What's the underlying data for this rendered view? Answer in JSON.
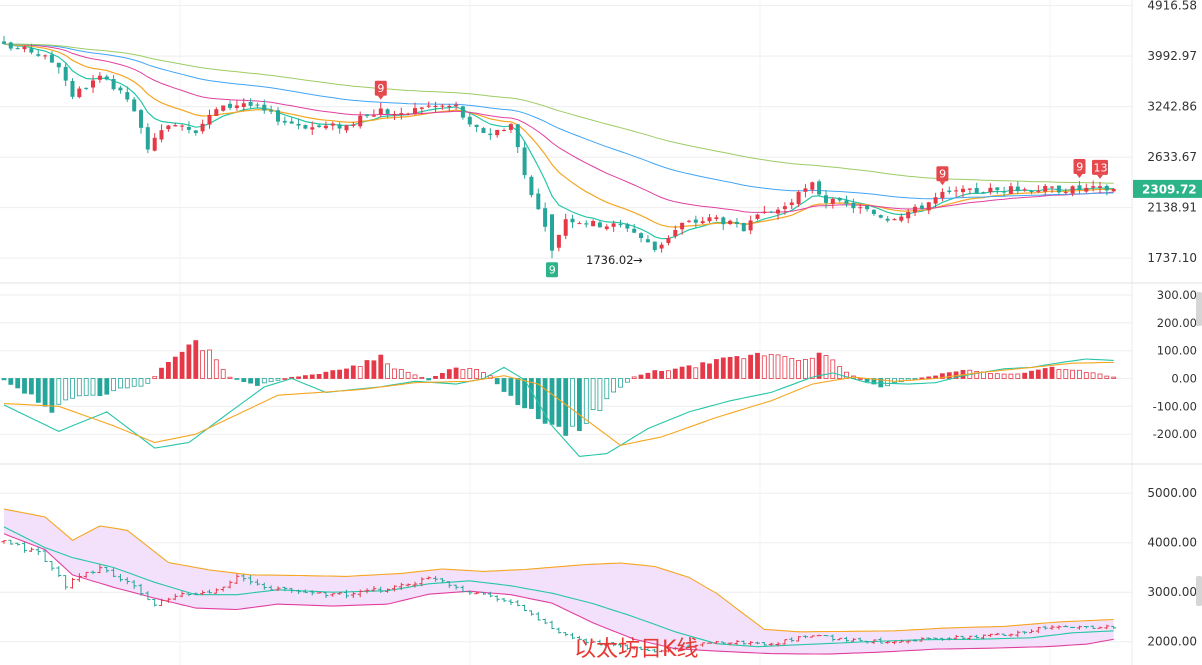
{
  "chart_data": [
    {
      "type": "candlestick",
      "panel": "price",
      "ylim": [
        1600,
        4950
      ],
      "y_ticks": [
        "4916.58",
        "3992.97",
        "3242.86",
        "2633.67",
        "2138.91",
        "1737.10"
      ],
      "y_tick_values": [
        4916.58,
        3992.97,
        3242.86,
        2633.67,
        2138.91,
        1737.1
      ],
      "last_price": "2309.72",
      "last_price_value": 2309.72,
      "low_label": "1736.02",
      "low_value": 1736.02,
      "flags": [
        {
          "label": "9",
          "index": 55,
          "kind": "sell"
        },
        {
          "label": "9",
          "index": 80,
          "kind": "buy"
        },
        {
          "label": "9",
          "index": 137,
          "kind": "sell"
        },
        {
          "label": "9",
          "index": 157,
          "kind": "sell"
        },
        {
          "label": "13",
          "index": 160,
          "kind": "sell"
        }
      ],
      "close_anchors": [
        [
          0,
          4150
        ],
        [
          4,
          4080
        ],
        [
          8,
          3850
        ],
        [
          10,
          3400
        ],
        [
          14,
          3650
        ],
        [
          18,
          3350
        ],
        [
          21,
          2750
        ],
        [
          25,
          3050
        ],
        [
          28,
          2950
        ],
        [
          31,
          3200
        ],
        [
          35,
          3300
        ],
        [
          41,
          3050
        ],
        [
          45,
          2980
        ],
        [
          50,
          3000
        ],
        [
          55,
          3200
        ],
        [
          58,
          3120
        ],
        [
          61,
          3250
        ],
        [
          66,
          3250
        ],
        [
          68,
          2980
        ],
        [
          71,
          2900
        ],
        [
          74,
          3020
        ],
        [
          76,
          2450
        ],
        [
          79,
          1950
        ],
        [
          80,
          1800
        ],
        [
          82,
          2050
        ],
        [
          86,
          2000
        ],
        [
          91,
          1980
        ],
        [
          95,
          1800
        ],
        [
          99,
          2000
        ],
        [
          104,
          2050
        ],
        [
          108,
          1950
        ],
        [
          110,
          2050
        ],
        [
          114,
          2150
        ],
        [
          118,
          2350
        ],
        [
          120,
          2200
        ],
        [
          124,
          2150
        ],
        [
          129,
          2050
        ],
        [
          133,
          2120
        ],
        [
          137,
          2260
        ],
        [
          140,
          2280
        ],
        [
          144,
          2300
        ],
        [
          150,
          2310
        ]
      ],
      "ma_colors": [
        "#26c6a6",
        "#f5a623",
        "#e040a0",
        "#42a5f5",
        "#9ccc65"
      ]
    },
    {
      "type": "macd",
      "panel": "indicator",
      "ylim": [
        -300,
        300
      ],
      "y_ticks": [
        "300.00",
        "200.00",
        "100.00",
        "0.00",
        "-100.00",
        "-200.00"
      ],
      "y_tick_values": [
        300,
        200,
        100,
        0,
        -100,
        -200
      ],
      "dif_anchors": [
        [
          0,
          -95
        ],
        [
          8,
          -190
        ],
        [
          15,
          -120
        ],
        [
          22,
          -250
        ],
        [
          27,
          -230
        ],
        [
          33,
          -120
        ],
        [
          38,
          -30
        ],
        [
          42,
          0
        ],
        [
          47,
          -50
        ],
        [
          55,
          -30
        ],
        [
          60,
          -10
        ],
        [
          66,
          -20
        ],
        [
          70,
          0
        ],
        [
          73,
          40
        ],
        [
          76,
          -5
        ],
        [
          80,
          -170
        ],
        [
          84,
          -280
        ],
        [
          88,
          -270
        ],
        [
          94,
          -180
        ],
        [
          100,
          -120
        ],
        [
          106,
          -80
        ],
        [
          112,
          -50
        ],
        [
          118,
          5
        ],
        [
          121,
          20
        ],
        [
          126,
          -15
        ],
        [
          132,
          -20
        ],
        [
          136,
          -15
        ],
        [
          140,
          10
        ],
        [
          146,
          35
        ],
        [
          150,
          40
        ],
        [
          155,
          60
        ],
        [
          158,
          70
        ],
        [
          162,
          65
        ]
      ],
      "dea_anchors": [
        [
          0,
          -90
        ],
        [
          8,
          -100
        ],
        [
          16,
          -170
        ],
        [
          22,
          -230
        ],
        [
          28,
          -200
        ],
        [
          34,
          -130
        ],
        [
          40,
          -60
        ],
        [
          46,
          -50
        ],
        [
          52,
          -40
        ],
        [
          60,
          -15
        ],
        [
          68,
          -10
        ],
        [
          73,
          10
        ],
        [
          78,
          -20
        ],
        [
          84,
          -130
        ],
        [
          90,
          -240
        ],
        [
          96,
          -210
        ],
        [
          104,
          -140
        ],
        [
          112,
          -80
        ],
        [
          118,
          -20
        ],
        [
          124,
          5
        ],
        [
          130,
          -10
        ],
        [
          136,
          0
        ],
        [
          142,
          20
        ],
        [
          150,
          40
        ],
        [
          156,
          55
        ],
        [
          162,
          58
        ]
      ],
      "histogram_anchors": [
        [
          0,
          -5
        ],
        [
          4,
          -60
        ],
        [
          7,
          -110
        ],
        [
          11,
          -70
        ],
        [
          17,
          -40
        ],
        [
          21,
          -20
        ],
        [
          24,
          60
        ],
        [
          28,
          130
        ],
        [
          30,
          100
        ],
        [
          33,
          5
        ],
        [
          37,
          -25
        ],
        [
          41,
          0
        ],
        [
          47,
          20
        ],
        [
          52,
          50
        ],
        [
          55,
          80
        ],
        [
          57,
          40
        ],
        [
          62,
          -5
        ],
        [
          65,
          30
        ],
        [
          68,
          40
        ],
        [
          71,
          10
        ],
        [
          74,
          -70
        ],
        [
          78,
          -130
        ],
        [
          82,
          -190
        ],
        [
          85,
          -150
        ],
        [
          90,
          -30
        ],
        [
          92,
          5
        ],
        [
          95,
          25
        ],
        [
          100,
          40
        ],
        [
          106,
          70
        ],
        [
          112,
          90
        ],
        [
          116,
          70
        ],
        [
          119,
          90
        ],
        [
          121,
          60
        ],
        [
          123,
          20
        ],
        [
          126,
          -10
        ],
        [
          128,
          -30
        ],
        [
          131,
          -10
        ],
        [
          136,
          10
        ],
        [
          140,
          30
        ],
        [
          144,
          20
        ],
        [
          148,
          15
        ],
        [
          153,
          40
        ],
        [
          158,
          25
        ],
        [
          162,
          5
        ]
      ],
      "line_colors": {
        "dif": "#26c6a6",
        "dea": "#f5a623"
      }
    },
    {
      "type": "candlestick-band",
      "panel": "band",
      "ylim": [
        1550,
        5550
      ],
      "y_ticks": [
        "5000.00",
        "4000.00",
        "3000.00",
        "2000.00"
      ],
      "y_tick_values": [
        5000,
        4000,
        3000,
        2000
      ],
      "close_anchors": [
        [
          0,
          4000
        ],
        [
          5,
          3800
        ],
        [
          9,
          3150
        ],
        [
          14,
          3500
        ],
        [
          19,
          3100
        ],
        [
          22,
          2750
        ],
        [
          26,
          2950
        ],
        [
          30,
          3000
        ],
        [
          34,
          3300
        ],
        [
          38,
          3100
        ],
        [
          44,
          3000
        ],
        [
          50,
          2950
        ],
        [
          55,
          3050
        ],
        [
          60,
          3200
        ],
        [
          63,
          3300
        ],
        [
          67,
          3050
        ],
        [
          72,
          2900
        ],
        [
          76,
          2650
        ],
        [
          80,
          2250
        ],
        [
          83,
          2050
        ],
        [
          90,
          1900
        ],
        [
          95,
          1800
        ],
        [
          100,
          1920
        ],
        [
          106,
          2000
        ],
        [
          112,
          1950
        ],
        [
          118,
          2150
        ],
        [
          122,
          2050
        ],
        [
          128,
          2000
        ],
        [
          134,
          2050
        ],
        [
          140,
          2080
        ],
        [
          146,
          2150
        ],
        [
          152,
          2280
        ],
        [
          158,
          2300
        ],
        [
          162,
          2300
        ]
      ],
      "upper_anchors": [
        [
          0,
          4680
        ],
        [
          6,
          4520
        ],
        [
          10,
          4050
        ],
        [
          14,
          4340
        ],
        [
          18,
          4250
        ],
        [
          24,
          3600
        ],
        [
          30,
          3450
        ],
        [
          36,
          3350
        ],
        [
          42,
          3340
        ],
        [
          50,
          3320
        ],
        [
          58,
          3380
        ],
        [
          64,
          3470
        ],
        [
          70,
          3420
        ],
        [
          76,
          3460
        ],
        [
          85,
          3560
        ],
        [
          90,
          3590
        ],
        [
          95,
          3520
        ],
        [
          100,
          3300
        ],
        [
          104,
          2980
        ],
        [
          108,
          2560
        ],
        [
          111,
          2250
        ],
        [
          116,
          2200
        ],
        [
          124,
          2210
        ],
        [
          130,
          2220
        ],
        [
          138,
          2280
        ],
        [
          146,
          2310
        ],
        [
          154,
          2400
        ],
        [
          162,
          2450
        ]
      ],
      "mid_anchors": [
        [
          0,
          4320
        ],
        [
          6,
          3900
        ],
        [
          10,
          3700
        ],
        [
          16,
          3500
        ],
        [
          22,
          3200
        ],
        [
          28,
          2950
        ],
        [
          34,
          2950
        ],
        [
          40,
          3050
        ],
        [
          48,
          3000
        ],
        [
          56,
          3030
        ],
        [
          62,
          3170
        ],
        [
          68,
          3230
        ],
        [
          74,
          3130
        ],
        [
          80,
          2980
        ],
        [
          86,
          2770
        ],
        [
          92,
          2500
        ],
        [
          98,
          2200
        ],
        [
          104,
          1960
        ],
        [
          110,
          1900
        ],
        [
          118,
          1950
        ],
        [
          126,
          2000
        ],
        [
          134,
          2040
        ],
        [
          142,
          2050
        ],
        [
          150,
          2080
        ],
        [
          156,
          2180
        ],
        [
          162,
          2220
        ]
      ],
      "lower_anchors": [
        [
          0,
          4180
        ],
        [
          6,
          3860
        ],
        [
          10,
          3350
        ],
        [
          16,
          3100
        ],
        [
          22,
          2880
        ],
        [
          28,
          2680
        ],
        [
          34,
          2650
        ],
        [
          40,
          2760
        ],
        [
          48,
          2720
        ],
        [
          56,
          2760
        ],
        [
          62,
          2960
        ],
        [
          68,
          3020
        ],
        [
          74,
          2950
        ],
        [
          80,
          2780
        ],
        [
          86,
          2380
        ],
        [
          92,
          2050
        ],
        [
          98,
          1860
        ],
        [
          104,
          1810
        ],
        [
          112,
          1760
        ],
        [
          120,
          1750
        ],
        [
          128,
          1790
        ],
        [
          136,
          1850
        ],
        [
          144,
          1870
        ],
        [
          152,
          1900
        ],
        [
          158,
          1950
        ],
        [
          162,
          2050
        ]
      ],
      "band_colors": {
        "upper": "#f5a623",
        "mid": "#26c6a6",
        "lower": "#e040a0",
        "fill": "#f3e0fa"
      }
    }
  ],
  "watermark": "以太坊日K线",
  "colors": {
    "up": "#e53948",
    "down": "#26a69a",
    "accent": "#2db388",
    "grid": "#eeeeee",
    "divider": "#e2e2e2"
  }
}
